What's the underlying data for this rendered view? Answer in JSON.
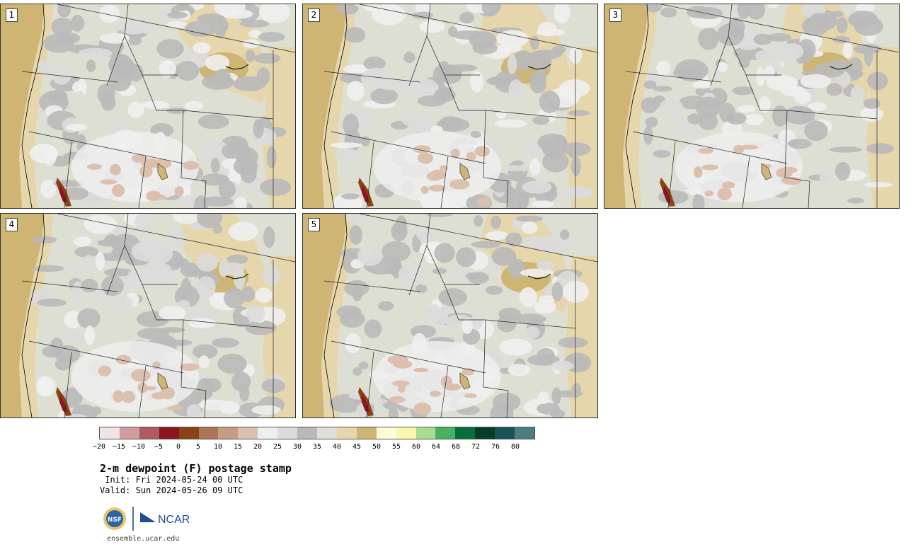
{
  "panels": [
    {
      "label": "1"
    },
    {
      "label": "2"
    },
    {
      "label": "3"
    },
    {
      "label": "4"
    },
    {
      "label": "5"
    }
  ],
  "colorbar": {
    "colors": [
      "#f2e4e4",
      "#d09ea0",
      "#b05b60",
      "#8c1520",
      "#8a4314",
      "#ad765a",
      "#c49c85",
      "#dbc0ae",
      "#efefef",
      "#dcdcdc",
      "#b9b9b9",
      "#dfdfd4",
      "#e6d6ac",
      "#ceb574",
      "#fffbd9",
      "#fbf6ae",
      "#a8dc8e",
      "#4ab062",
      "#0a6e3c",
      "#053d26",
      "#185457",
      "#4f7d7f"
    ],
    "ticks": [
      "−20",
      "−15",
      "−10",
      "−5",
      "0",
      "5",
      "10",
      "15",
      "20",
      "25",
      "30",
      "35",
      "40",
      "45",
      "50",
      "55",
      "60",
      "64",
      "68",
      "72",
      "76",
      "80"
    ]
  },
  "title": "2-m dewpoint (F) postage stamp",
  "init": " Init: Fri 2024-05-24 00 UTC",
  "valid": "Valid: Sun 2024-05-26 09 UTC",
  "logos": {
    "nsf": "NSF",
    "ncar": "NCAR"
  },
  "site": "ensemble.ucar.edu"
}
